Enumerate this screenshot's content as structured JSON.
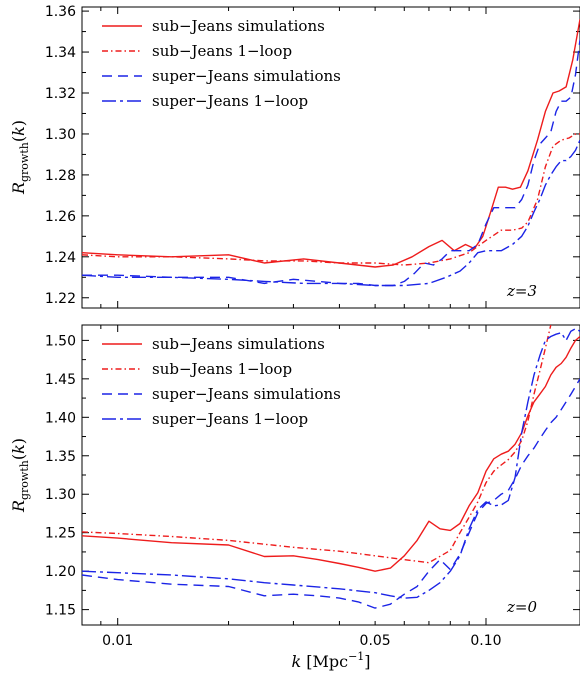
{
  "chart_data": [
    {
      "type": "line",
      "panel": "top",
      "xscale": "log",
      "xlim": [
        0.008,
        0.18
      ],
      "ylim": [
        1.215,
        1.362
      ],
      "ylabel": "R_growth(k)",
      "yticks": [
        "1.22",
        "1.24",
        "1.26",
        "1.28",
        "1.30",
        "1.32",
        "1.34",
        "1.36"
      ],
      "annotation": "z=3",
      "legend_position": "top-left",
      "series": [
        {
          "name": "sub−Jeans simulations",
          "color": "#ee1c1c",
          "dash": "solid",
          "x": [
            0.008,
            0.01,
            0.014,
            0.02,
            0.025,
            0.032,
            0.04,
            0.05,
            0.056,
            0.063,
            0.07,
            0.076,
            0.082,
            0.088,
            0.093,
            0.098,
            0.103,
            0.108,
            0.113,
            0.118,
            0.124,
            0.13,
            0.138,
            0.145,
            0.152,
            0.158,
            0.165,
            0.172,
            0.18
          ],
          "y": [
            1.242,
            1.241,
            1.24,
            1.241,
            1.237,
            1.239,
            1.237,
            1.235,
            1.236,
            1.24,
            1.245,
            1.248,
            1.243,
            1.246,
            1.244,
            1.25,
            1.262,
            1.274,
            1.274,
            1.273,
            1.274,
            1.282,
            1.297,
            1.311,
            1.32,
            1.321,
            1.323,
            1.336,
            1.356
          ]
        },
        {
          "name": "sub−Jeans 1−loop",
          "color": "#ee1c1c",
          "dash": "6,3,1.5,3",
          "x": [
            0.008,
            0.01,
            0.014,
            0.02,
            0.025,
            0.032,
            0.04,
            0.05,
            0.06,
            0.07,
            0.08,
            0.09,
            0.1,
            0.11,
            0.118,
            0.125,
            0.13,
            0.138,
            0.145,
            0.152,
            0.16,
            0.168,
            0.175,
            0.18
          ],
          "y": [
            1.241,
            1.24,
            1.24,
            1.239,
            1.238,
            1.238,
            1.237,
            1.237,
            1.236,
            1.237,
            1.239,
            1.242,
            1.248,
            1.253,
            1.253,
            1.254,
            1.257,
            1.268,
            1.284,
            1.294,
            1.297,
            1.298,
            1.3,
            1.3
          ]
        },
        {
          "name": "super−Jeans simulations",
          "color": "#1b24e6",
          "dash": "10,6",
          "x": [
            0.008,
            0.01,
            0.014,
            0.02,
            0.025,
            0.03,
            0.035,
            0.04,
            0.045,
            0.05,
            0.056,
            0.06,
            0.064,
            0.068,
            0.072,
            0.076,
            0.08,
            0.085,
            0.09,
            0.095,
            0.1,
            0.105,
            0.11,
            0.115,
            0.12,
            0.125,
            0.13,
            0.135,
            0.14,
            0.145,
            0.15,
            0.155,
            0.16,
            0.165,
            0.17,
            0.175,
            0.18
          ],
          "y": [
            1.231,
            1.231,
            1.23,
            1.23,
            1.227,
            1.229,
            1.228,
            1.227,
            1.227,
            1.226,
            1.226,
            1.228,
            1.232,
            1.237,
            1.236,
            1.239,
            1.243,
            1.243,
            1.243,
            1.246,
            1.256,
            1.264,
            1.264,
            1.264,
            1.264,
            1.268,
            1.275,
            1.287,
            1.295,
            1.298,
            1.301,
            1.311,
            1.316,
            1.316,
            1.318,
            1.329,
            1.346
          ]
        },
        {
          "name": "super−Jeans 1−loop",
          "color": "#1b24e6",
          "dash": "14,4,3,4",
          "x": [
            0.008,
            0.01,
            0.014,
            0.02,
            0.025,
            0.032,
            0.04,
            0.05,
            0.06,
            0.07,
            0.078,
            0.085,
            0.09,
            0.095,
            0.1,
            0.105,
            0.11,
            0.118,
            0.125,
            0.13,
            0.135,
            0.14,
            0.145,
            0.15,
            0.155,
            0.16,
            0.165,
            0.17,
            0.175,
            0.18
          ],
          "y": [
            1.231,
            1.23,
            1.23,
            1.229,
            1.228,
            1.227,
            1.227,
            1.226,
            1.226,
            1.227,
            1.23,
            1.233,
            1.237,
            1.242,
            1.243,
            1.243,
            1.243,
            1.246,
            1.25,
            1.255,
            1.262,
            1.268,
            1.275,
            1.28,
            1.284,
            1.287,
            1.287,
            1.289,
            1.292,
            1.297
          ]
        }
      ]
    },
    {
      "type": "line",
      "panel": "bottom",
      "xscale": "log",
      "xlim": [
        0.008,
        0.18
      ],
      "ylim": [
        1.13,
        1.52
      ],
      "ylabel": "R_growth(k)",
      "xlabel": "k  [Mpc^-1]",
      "xticks": [
        "0.01",
        "0.05",
        "0.10"
      ],
      "yticks": [
        "1.15",
        "1.20",
        "1.25",
        "1.30",
        "1.35",
        "1.40",
        "1.45",
        "1.50"
      ],
      "annotation": "z=0",
      "legend_position": "top-left",
      "series": [
        {
          "name": "sub−Jeans simulations",
          "color": "#ee1c1c",
          "dash": "solid",
          "x": [
            0.008,
            0.01,
            0.014,
            0.02,
            0.025,
            0.03,
            0.035,
            0.04,
            0.045,
            0.05,
            0.055,
            0.06,
            0.065,
            0.07,
            0.075,
            0.08,
            0.085,
            0.09,
            0.095,
            0.1,
            0.105,
            0.11,
            0.115,
            0.12,
            0.125,
            0.13,
            0.135,
            0.14,
            0.145,
            0.15,
            0.155,
            0.16,
            0.165,
            0.17,
            0.175,
            0.18
          ],
          "y": [
            1.246,
            1.243,
            1.237,
            1.234,
            1.219,
            1.22,
            1.215,
            1.21,
            1.205,
            1.2,
            1.204,
            1.22,
            1.24,
            1.265,
            1.255,
            1.253,
            1.262,
            1.285,
            1.302,
            1.33,
            1.346,
            1.352,
            1.356,
            1.365,
            1.38,
            1.402,
            1.42,
            1.43,
            1.44,
            1.455,
            1.465,
            1.47,
            1.478,
            1.49,
            1.5,
            1.505
          ]
        },
        {
          "name": "sub−Jeans 1−loop",
          "color": "#ee1c1c",
          "dash": "6,3,1.5,3",
          "x": [
            0.008,
            0.01,
            0.014,
            0.02,
            0.025,
            0.03,
            0.04,
            0.05,
            0.06,
            0.07,
            0.08,
            0.085,
            0.09,
            0.095,
            0.1,
            0.105,
            0.11,
            0.115,
            0.12,
            0.125,
            0.13,
            0.135,
            0.14,
            0.145,
            0.15
          ],
          "y": [
            1.251,
            1.249,
            1.245,
            1.24,
            1.235,
            1.231,
            1.226,
            1.22,
            1.215,
            1.211,
            1.227,
            1.25,
            1.27,
            1.29,
            1.315,
            1.33,
            1.338,
            1.345,
            1.355,
            1.37,
            1.395,
            1.43,
            1.46,
            1.49,
            1.52
          ]
        },
        {
          "name": "super−Jeans simulations",
          "color": "#1b24e6",
          "dash": "10,6",
          "x": [
            0.008,
            0.01,
            0.014,
            0.02,
            0.025,
            0.03,
            0.035,
            0.04,
            0.045,
            0.05,
            0.055,
            0.06,
            0.065,
            0.07,
            0.075,
            0.08,
            0.085,
            0.09,
            0.095,
            0.1,
            0.105,
            0.11,
            0.115,
            0.12,
            0.125,
            0.13,
            0.135,
            0.14,
            0.145,
            0.15,
            0.155,
            0.16,
            0.165,
            0.17,
            0.175,
            0.18
          ],
          "y": [
            1.195,
            1.189,
            1.183,
            1.18,
            1.168,
            1.17,
            1.168,
            1.165,
            1.16,
            1.152,
            1.157,
            1.17,
            1.18,
            1.2,
            1.215,
            1.202,
            1.222,
            1.25,
            1.276,
            1.288,
            1.292,
            1.3,
            1.305,
            1.32,
            1.338,
            1.35,
            1.36,
            1.372,
            1.383,
            1.393,
            1.4,
            1.41,
            1.42,
            1.43,
            1.44,
            1.45
          ]
        },
        {
          "name": "super−Jeans 1−loop",
          "color": "#1b24e6",
          "dash": "14,4,3,4",
          "x": [
            0.008,
            0.01,
            0.014,
            0.02,
            0.025,
            0.03,
            0.04,
            0.05,
            0.055,
            0.06,
            0.065,
            0.07,
            0.075,
            0.08,
            0.085,
            0.09,
            0.095,
            0.1,
            0.105,
            0.11,
            0.115,
            0.12,
            0.125,
            0.13,
            0.135,
            0.14,
            0.145,
            0.15,
            0.155,
            0.16,
            0.165,
            0.17,
            0.175,
            0.18
          ],
          "y": [
            1.2,
            1.198,
            1.195,
            1.19,
            1.185,
            1.182,
            1.177,
            1.172,
            1.168,
            1.165,
            1.166,
            1.175,
            1.185,
            1.2,
            1.22,
            1.255,
            1.28,
            1.29,
            1.285,
            1.286,
            1.292,
            1.322,
            1.38,
            1.42,
            1.455,
            1.48,
            1.5,
            1.505,
            1.508,
            1.51,
            1.5,
            1.512,
            1.515,
            1.512
          ]
        }
      ]
    }
  ]
}
